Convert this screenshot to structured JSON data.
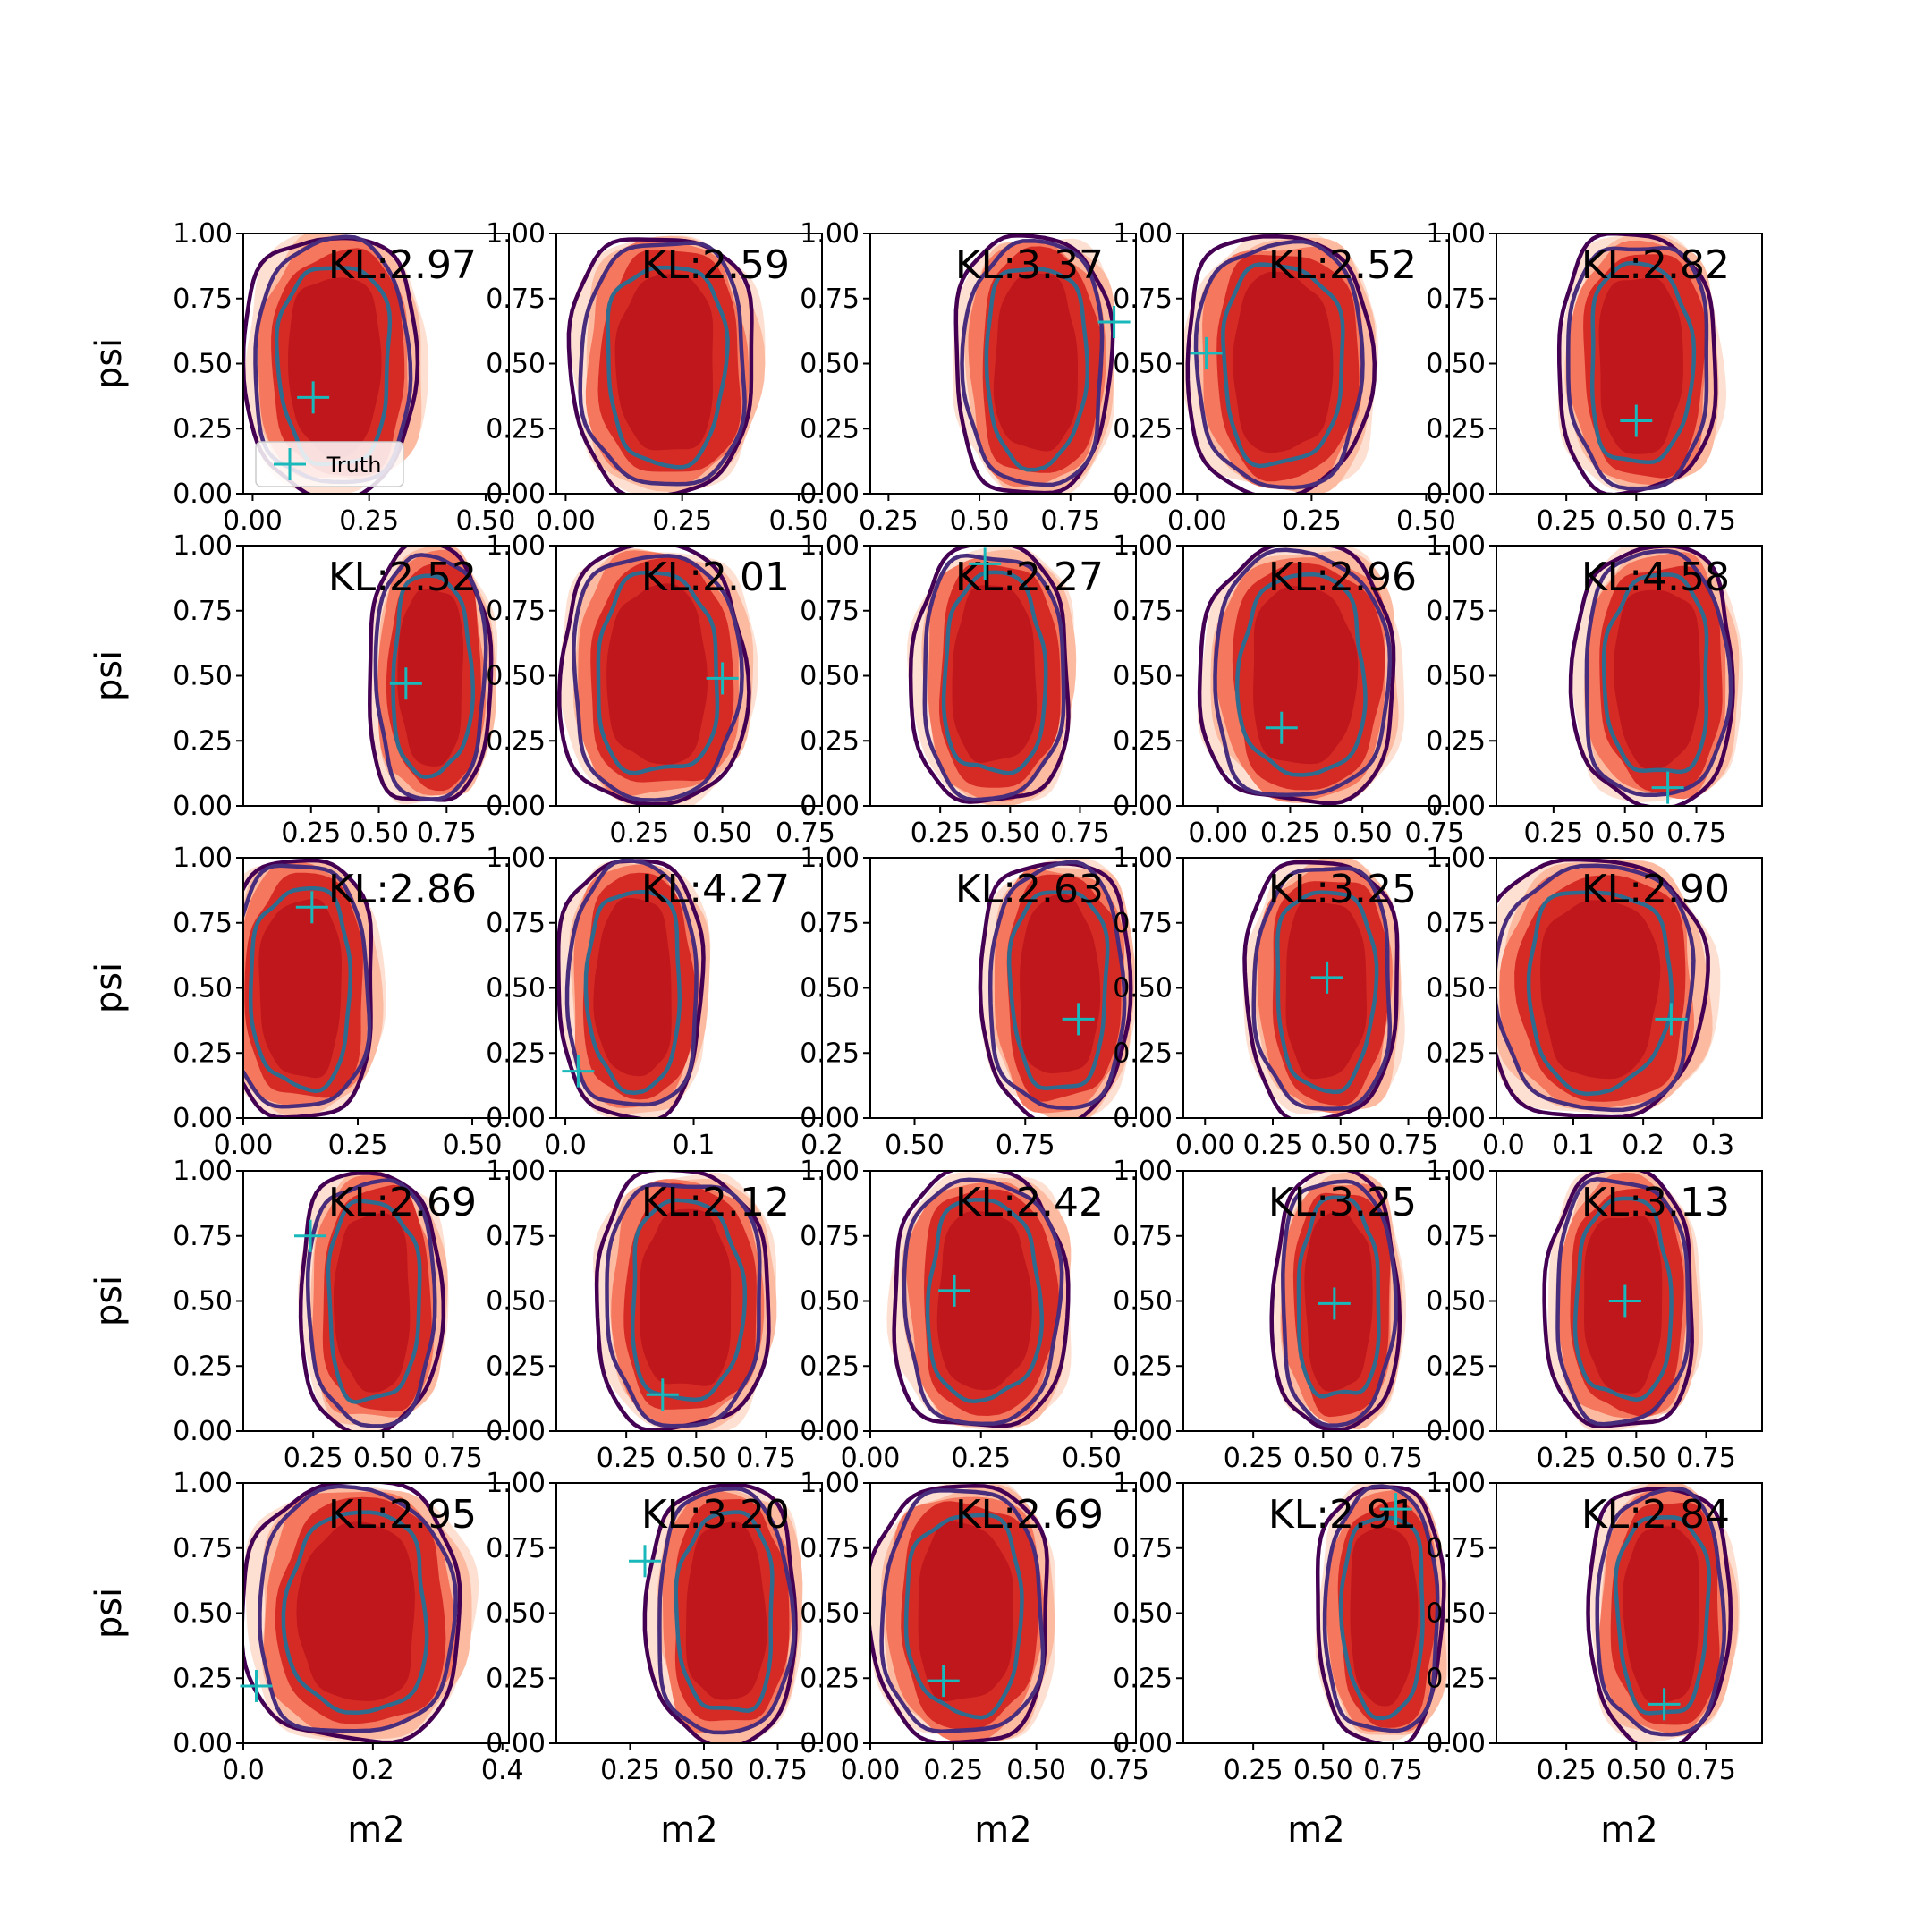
{
  "chart_data": {
    "type": "contour-grid",
    "rows": 5,
    "cols": 5,
    "ylabel": "psi",
    "xlabel": "m2",
    "yticks": [
      "0.00",
      "0.25",
      "0.50",
      "0.75",
      "1.00"
    ],
    "ylim": [
      0,
      1
    ],
    "legend": {
      "label": "Truth",
      "placement": "lower-left",
      "panel": 0
    },
    "colors": {
      "fill_levels": [
        "#fde0d2",
        "#fcbba1",
        "#f4775e",
        "#d62b25",
        "#c0171c"
      ],
      "contour_outer": "#440154",
      "contour_mid": "#472d7b",
      "contour_inner": "#2f6b8e",
      "truth": "#19b8bb"
    },
    "panels": [
      {
        "kl": "KL:2.97",
        "xlim": [
          -0.02,
          0.55
        ],
        "xticks": [
          0,
          0.25,
          0.5
        ],
        "xtick_labels": [
          "0.00",
          "0.25",
          "0.50"
        ],
        "truth": [
          0.13,
          0.37
        ],
        "center": [
          0.18,
          0.5
        ],
        "width": 0.33
      },
      {
        "kl": "KL:2.59",
        "xlim": [
          -0.02,
          0.55
        ],
        "xticks": [
          0,
          0.25,
          0.5
        ],
        "xtick_labels": [
          "0.00",
          "0.25",
          "0.50"
        ],
        "truth": null,
        "center": [
          0.22,
          0.5
        ],
        "width": 0.35
      },
      {
        "kl": "KL:3.37",
        "xlim": [
          0.2,
          0.93
        ],
        "xticks": [
          0.25,
          0.5,
          0.75
        ],
        "xtick_labels": [
          "0.25",
          "0.50",
          "0.75"
        ],
        "truth": [
          0.87,
          0.66
        ],
        "center": [
          0.66,
          0.5
        ],
        "width": 0.38
      },
      {
        "kl": "KL:2.52",
        "xlim": [
          -0.03,
          0.55
        ],
        "xticks": [
          0,
          0.25,
          0.5
        ],
        "xtick_labels": [
          "0.00",
          "0.25",
          "0.50"
        ],
        "truth": [
          0.02,
          0.54
        ],
        "center": [
          0.19,
          0.5
        ],
        "width": 0.36
      },
      {
        "kl": "KL:2.82",
        "xlim": [
          0.0,
          0.95
        ],
        "xticks": [
          0.25,
          0.5,
          0.75
        ],
        "xtick_labels": [
          "0.25",
          "0.50",
          "0.75"
        ],
        "truth": [
          0.5,
          0.28
        ],
        "center": [
          0.52,
          0.5
        ],
        "width": 0.5
      },
      {
        "kl": "KL:2.52",
        "xlim": [
          0.0,
          0.98
        ],
        "xticks": [
          0.25,
          0.5,
          0.75
        ],
        "xtick_labels": [
          "0.25",
          "0.50",
          "0.75"
        ],
        "truth": [
          0.6,
          0.47
        ],
        "center": [
          0.7,
          0.5
        ],
        "width": 0.4
      },
      {
        "kl": "KL:2.01",
        "xlim": [
          0.0,
          0.8
        ],
        "xticks": [
          0.25,
          0.5,
          0.75
        ],
        "xtick_labels": [
          "0.25",
          "0.50",
          "0.75"
        ],
        "truth": [
          0.5,
          0.49
        ],
        "center": [
          0.31,
          0.5
        ],
        "width": 0.5
      },
      {
        "kl": "KL:2.27",
        "xlim": [
          0.0,
          0.95
        ],
        "xticks": [
          0.25,
          0.5,
          0.75
        ],
        "xtick_labels": [
          "0.25",
          "0.50",
          "0.75"
        ],
        "truth": [
          0.41,
          0.93
        ],
        "center": [
          0.45,
          0.5
        ],
        "width": 0.5
      },
      {
        "kl": "KL:2.96",
        "xlim": [
          -0.12,
          0.8
        ],
        "xticks": [
          0,
          0.25,
          0.5,
          0.75
        ],
        "xtick_labels": [
          "0.00",
          "0.25",
          "0.50",
          "0.75"
        ],
        "truth": [
          0.22,
          0.3
        ],
        "center": [
          0.3,
          0.5
        ],
        "width": 0.6
      },
      {
        "kl": "KL:4.58",
        "xlim": [
          0.05,
          0.98
        ],
        "xticks": [
          0.25,
          0.5,
          0.75
        ],
        "xtick_labels": [
          "0.25",
          "0.50",
          "0.75"
        ],
        "truth": [
          0.65,
          0.07
        ],
        "center": [
          0.62,
          0.5
        ],
        "width": 0.5
      },
      {
        "kl": "KL:2.86",
        "xlim": [
          0.0,
          0.58
        ],
        "xticks": [
          0,
          0.25,
          0.5
        ],
        "xtick_labels": [
          "0.00",
          "0.25",
          "0.50"
        ],
        "truth": [
          0.15,
          0.81
        ],
        "center": [
          0.13,
          0.5
        ],
        "width": 0.3
      },
      {
        "kl": "KL:4.27",
        "xlim": [
          -0.007,
          0.2
        ],
        "xticks": [
          0,
          0.1,
          0.2
        ],
        "xtick_labels": [
          "0.0",
          "0.1",
          "0.2"
        ],
        "truth": [
          0.01,
          0.18
        ],
        "center": [
          0.055,
          0.5
        ],
        "width": 0.1
      },
      {
        "kl": "KL:2.63",
        "xlim": [
          0.4,
          1.0
        ],
        "xticks": [
          0.5,
          0.75
        ],
        "xtick_labels": [
          "0.50",
          "0.75"
        ],
        "truth": [
          0.87,
          0.38
        ],
        "center": [
          0.83,
          0.5
        ],
        "width": 0.3
      },
      {
        "kl": "KL:3.25",
        "xlim": [
          -0.08,
          0.9
        ],
        "xticks": [
          0,
          0.25,
          0.5,
          0.75
        ],
        "xtick_labels": [
          "0.00",
          "0.25",
          "0.50",
          "0.75"
        ],
        "truth": [
          0.45,
          0.54
        ],
        "center": [
          0.45,
          0.5
        ],
        "width": 0.5
      },
      {
        "kl": "KL:2.90",
        "xlim": [
          -0.01,
          0.37
        ],
        "xticks": [
          0,
          0.1,
          0.2,
          0.3
        ],
        "xtick_labels": [
          "0.0",
          "0.1",
          "0.2",
          "0.3"
        ],
        "truth": [
          0.24,
          0.38
        ],
        "center": [
          0.14,
          0.5
        ],
        "width": 0.28
      },
      {
        "kl": "KL:2.69",
        "xlim": [
          0.0,
          0.95
        ],
        "xticks": [
          0.25,
          0.5,
          0.75
        ],
        "xtick_labels": [
          "0.25",
          "0.50",
          "0.75"
        ],
        "truth": [
          0.24,
          0.75
        ],
        "center": [
          0.47,
          0.5
        ],
        "width": 0.45
      },
      {
        "kl": "KL:2.12",
        "xlim": [
          0.0,
          0.95
        ],
        "xticks": [
          0.25,
          0.5,
          0.75
        ],
        "xtick_labels": [
          "0.25",
          "0.50",
          "0.75"
        ],
        "truth": [
          0.38,
          0.14
        ],
        "center": [
          0.47,
          0.5
        ],
        "width": 0.55
      },
      {
        "kl": "KL:2.42",
        "xlim": [
          0.0,
          0.6
        ],
        "xticks": [
          0,
          0.25,
          0.5
        ],
        "xtick_labels": [
          "0.00",
          "0.25",
          "0.50"
        ],
        "truth": [
          0.19,
          0.54
        ],
        "center": [
          0.26,
          0.5
        ],
        "width": 0.35
      },
      {
        "kl": "KL:3.25",
        "xlim": [
          0.0,
          0.95
        ],
        "xticks": [
          0.25,
          0.5,
          0.75
        ],
        "xtick_labels": [
          "0.25",
          "0.50",
          "0.75"
        ],
        "truth": [
          0.54,
          0.49
        ],
        "center": [
          0.56,
          0.5
        ],
        "width": 0.4
      },
      {
        "kl": "KL:3.13",
        "xlim": [
          0.0,
          0.95
        ],
        "xticks": [
          0.25,
          0.5,
          0.75
        ],
        "xtick_labels": [
          "0.25",
          "0.50",
          "0.75"
        ],
        "truth": [
          0.46,
          0.5
        ],
        "center": [
          0.46,
          0.5
        ],
        "width": 0.47
      },
      {
        "kl": "KL:2.95",
        "xlim": [
          0.0,
          0.41
        ],
        "xticks": [
          0,
          0.2,
          0.4
        ],
        "xtick_labels": [
          "0.0",
          "0.2",
          "0.4"
        ],
        "truth": [
          0.02,
          0.22
        ],
        "center": [
          0.18,
          0.5
        ],
        "width": 0.3
      },
      {
        "kl": "KL:3.20",
        "xlim": [
          0.0,
          0.9
        ],
        "xticks": [
          0.25,
          0.5,
          0.75
        ],
        "xtick_labels": [
          "0.25",
          "0.50",
          "0.75"
        ],
        "truth": [
          0.3,
          0.7
        ],
        "center": [
          0.58,
          0.5
        ],
        "width": 0.45
      },
      {
        "kl": "KL:2.69",
        "xlim": [
          0.0,
          0.8
        ],
        "xticks": [
          0,
          0.25,
          0.5,
          0.75
        ],
        "xtick_labels": [
          "0.00",
          "0.25",
          "0.50",
          "0.75"
        ],
        "truth": [
          0.22,
          0.24
        ],
        "center": [
          0.29,
          0.5
        ],
        "width": 0.48
      },
      {
        "kl": "KL:2.91",
        "xlim": [
          0.0,
          0.95
        ],
        "xticks": [
          0.25,
          0.5,
          0.75
        ],
        "xtick_labels": [
          "0.25",
          "0.50",
          "0.75"
        ],
        "truth": [
          0.76,
          0.9
        ],
        "center": [
          0.72,
          0.5
        ],
        "width": 0.4
      },
      {
        "kl": "KL:2.84",
        "xlim": [
          0.0,
          0.95
        ],
        "xticks": [
          0.25,
          0.5,
          0.75
        ],
        "xtick_labels": [
          "0.25",
          "0.50",
          "0.75"
        ],
        "truth": [
          0.6,
          0.15
        ],
        "center": [
          0.6,
          0.5
        ],
        "width": 0.45
      }
    ]
  }
}
